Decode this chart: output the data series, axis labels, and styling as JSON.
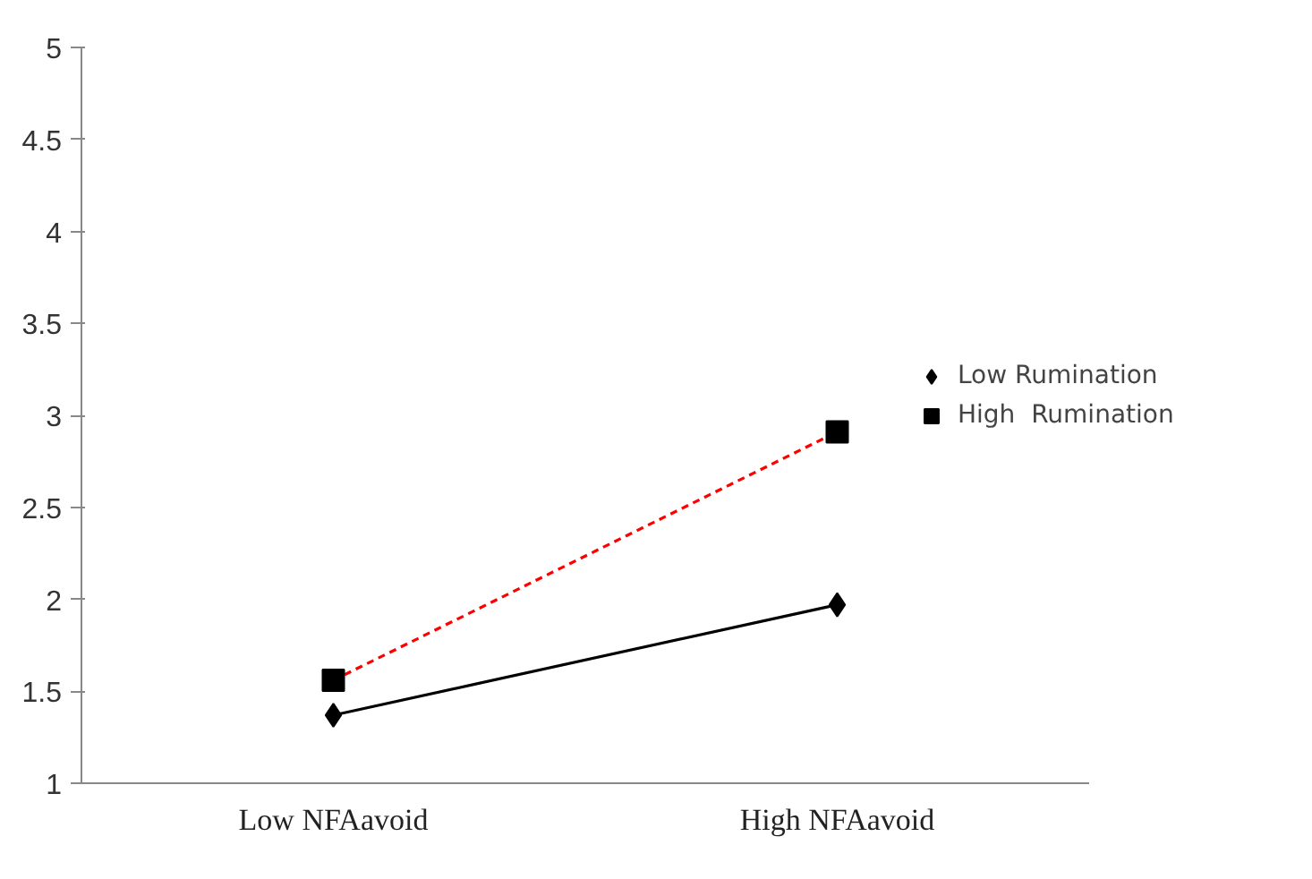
{
  "chart_data": {
    "type": "line",
    "categories": [
      "Low NFAavoid",
      "High NFAavoid"
    ],
    "series": [
      {
        "name": "Low Rumination",
        "color": "#000000",
        "values": [
          1.37,
          1.97
        ],
        "marker": "diamond",
        "line_style": "solid"
      },
      {
        "name": "High  Rumination",
        "color": "#ff0000",
        "values": [
          1.56,
          2.91
        ],
        "marker": "square",
        "line_style": "dashed"
      }
    ],
    "ylim": [
      1,
      5
    ],
    "yticks": [
      1,
      1.5,
      2,
      2.5,
      3,
      3.5,
      4,
      4.5,
      5
    ],
    "grid": false,
    "legend": "right"
  }
}
